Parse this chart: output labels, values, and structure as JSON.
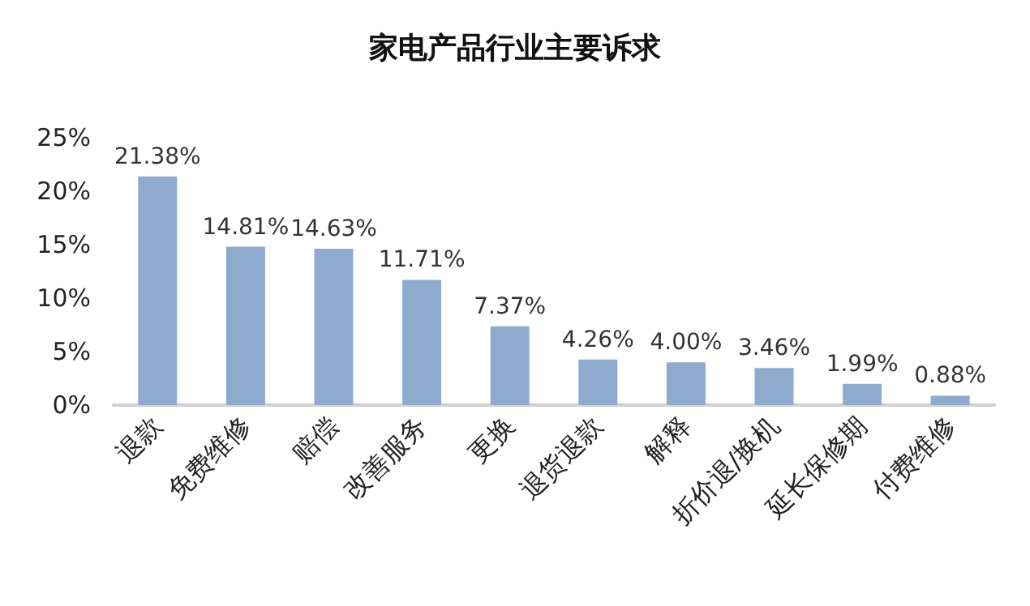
{
  "chart_data": {
    "type": "bar",
    "title": "家电产品行业主要诉求",
    "categories": [
      "退款",
      "免费维修",
      "赔偿",
      "改善服务",
      "更换",
      "退货退款",
      "解释",
      "折价退/换机",
      "延长保修期",
      "付费维修"
    ],
    "values": [
      21.38,
      14.81,
      14.63,
      11.71,
      7.37,
      4.26,
      4.0,
      3.46,
      1.99,
      0.88
    ],
    "value_labels": [
      "21.38%",
      "14.81%",
      "14.63%",
      "11.71%",
      "7.37%",
      "4.26%",
      "4.00%",
      "3.46%",
      "1.99%",
      "0.88%"
    ],
    "color": "#8eaacc",
    "ylim": [
      0,
      25
    ],
    "yticks": [
      {
        "value": 0,
        "label": "0%"
      },
      {
        "value": 5,
        "label": "5%"
      },
      {
        "value": 10,
        "label": "10%"
      },
      {
        "value": 15,
        "label": "15%"
      },
      {
        "value": 20,
        "label": "20%"
      },
      {
        "value": 25,
        "label": "25%"
      }
    ],
    "grid": false
  }
}
